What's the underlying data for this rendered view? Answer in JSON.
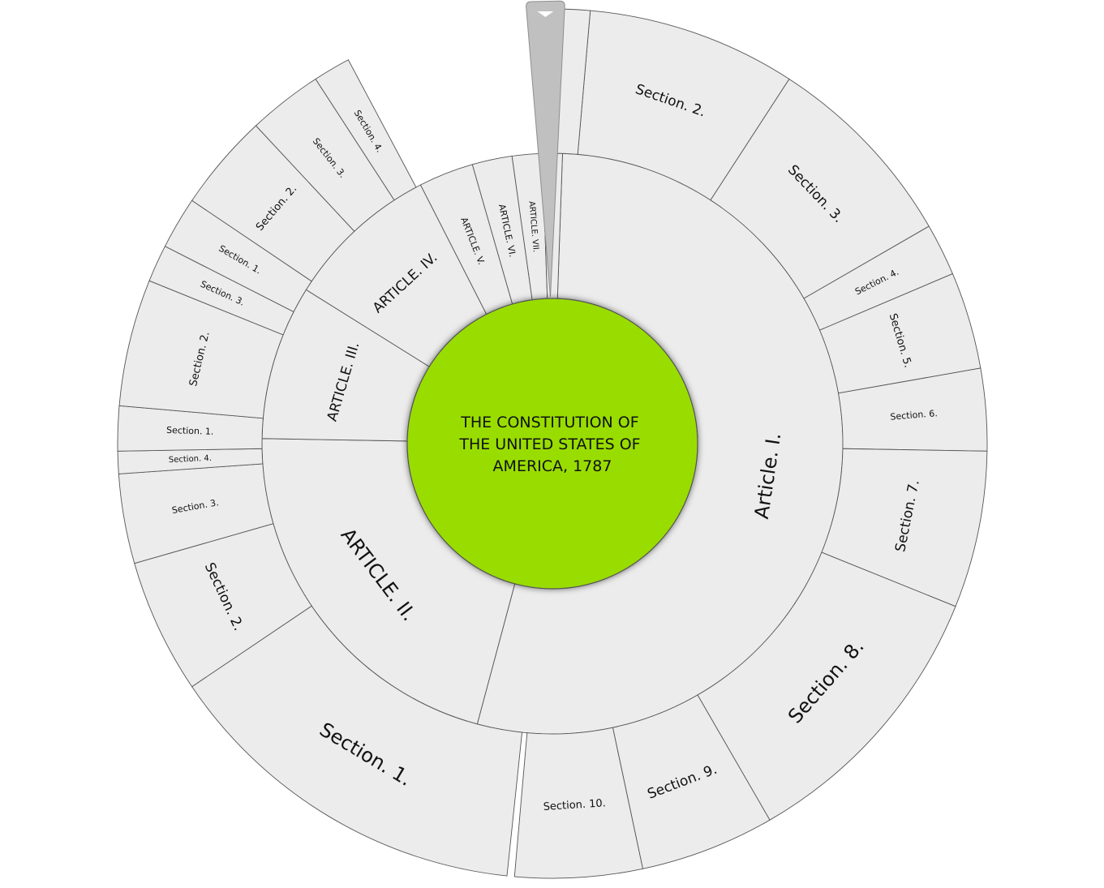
{
  "center": {
    "title_lines": [
      "THE CONSTITUTION OF",
      "THE UNITED STATES OF",
      "AMERICA, 1787"
    ],
    "color": "#99dd00"
  },
  "colors": {
    "segment_fill": "#ececec",
    "segment_stroke": "#555555",
    "pointer_fill": "#c0c0c0"
  },
  "icons": {
    "pointer": "down-arrow-icon"
  },
  "chart_data": {
    "type": "sunburst",
    "root": "THE CONSTITUTION OF THE UNITED STATES OF AMERICA, 1787",
    "unit": "degrees of arc, clockwise from top",
    "children": [
      {
        "label": "Article. I.",
        "start": 2,
        "end": 195,
        "children": [
          {
            "label": "Section. 2.",
            "start": 5,
            "end": 33
          },
          {
            "label": "Section. 3.",
            "start": 33,
            "end": 60
          },
          {
            "label": "Section. 4.",
            "start": 60,
            "end": 67
          },
          {
            "label": "Section. 5.",
            "start": 67,
            "end": 80
          },
          {
            "label": "Section. 6.",
            "start": 80,
            "end": 91
          },
          {
            "label": "Section. 7.",
            "start": 91,
            "end": 112
          },
          {
            "label": "Section. 8.",
            "start": 112,
            "end": 150
          },
          {
            "label": "Section. 9.",
            "start": 150,
            "end": 168
          },
          {
            "label": "Section. 10.",
            "start": 168,
            "end": 185
          }
        ]
      },
      {
        "label": "ARTICLE. II.",
        "start": 195,
        "end": 271,
        "children": [
          {
            "label": "Section. 1.",
            "start": 186,
            "end": 236
          },
          {
            "label": "Section. 2.",
            "start": 236,
            "end": 254
          },
          {
            "label": "Section. 3.",
            "start": 254,
            "end": 266
          },
          {
            "label": "Section. 4.",
            "start": 266,
            "end": 269
          }
        ]
      },
      {
        "label": "ARTICLE. III.",
        "start": 271,
        "end": 302,
        "children": [
          {
            "label": "Section. 1.",
            "start": 269,
            "end": 275
          },
          {
            "label": "Section. 2.",
            "start": 275,
            "end": 292
          },
          {
            "label": "Section. 3.",
            "start": 292,
            "end": 297
          }
        ]
      },
      {
        "label": "ARTICLE. IV.",
        "start": 302,
        "end": 333,
        "children": [
          {
            "label": "Section. 1.",
            "start": 297,
            "end": 304
          },
          {
            "label": "Section. 2.",
            "start": 304,
            "end": 317
          },
          {
            "label": "Section. 3.",
            "start": 317,
            "end": 327
          },
          {
            "label": "Section. 4.",
            "start": 327,
            "end": 332
          }
        ]
      },
      {
        "label": "ARTICLE. V.",
        "start": 333,
        "end": 344
      },
      {
        "label": "ARTICLE. VI.",
        "start": 344,
        "end": 352
      },
      {
        "label": "ARTICLE. VII.",
        "start": 352,
        "end": 358
      }
    ]
  }
}
